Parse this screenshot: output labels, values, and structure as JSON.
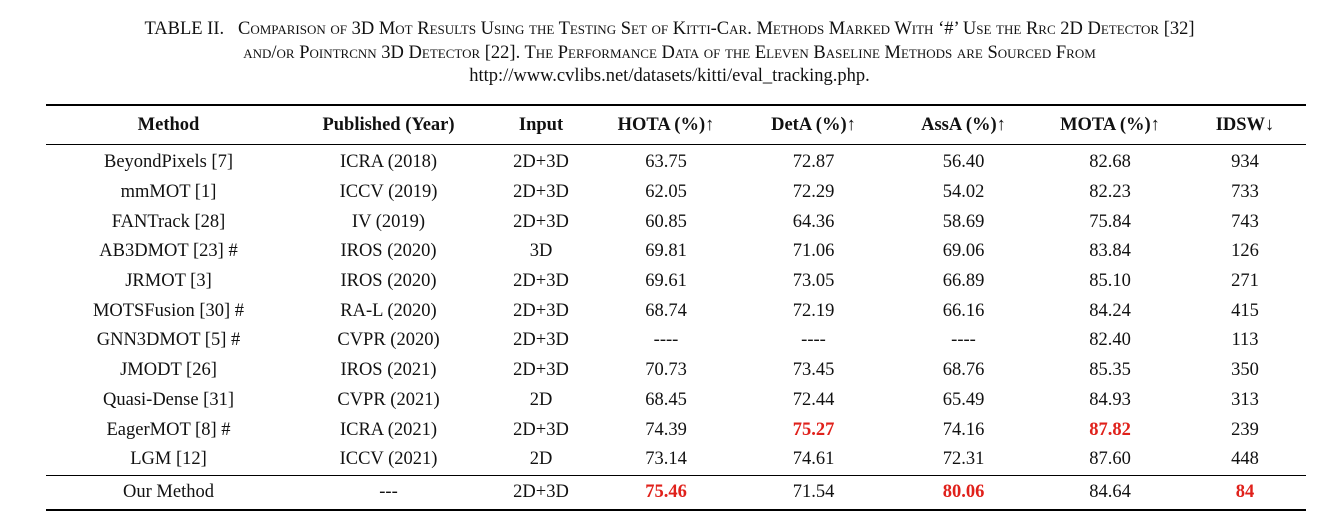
{
  "caption": {
    "label": "TABLE II.",
    "line1": "Comparison of 3D Mot Results Using the Testing Set of Kitti-Car. Methods Marked With ‘#’ Use the Rrc 2D Detector [32]",
    "line2": "and/or Pointrcnn 3D Detector [22]. The Performance Data of the Eleven Baseline Methods are Sourced From",
    "line3": "http://www.cvlibs.net/datasets/kitti/eval_tracking.php."
  },
  "table": {
    "headers": [
      "Method",
      "Published (Year)",
      "Input",
      "HOTA (%)↑",
      "DetA (%)↑",
      "AssA (%)↑",
      "MOTA (%)↑",
      "IDSW↓"
    ],
    "highlight_color": "#e0211b",
    "rows": [
      {
        "cells": [
          "BeyondPixels [7]",
          "ICRA (2018)",
          "2D+3D",
          "63.75",
          "72.87",
          "56.40",
          "82.68",
          "934"
        ],
        "best": []
      },
      {
        "cells": [
          "mmMOT [1]",
          "ICCV (2019)",
          "2D+3D",
          "62.05",
          "72.29",
          "54.02",
          "82.23",
          "733"
        ],
        "best": []
      },
      {
        "cells": [
          "FANTrack [28]",
          "IV (2019)",
          "2D+3D",
          "60.85",
          "64.36",
          "58.69",
          "75.84",
          "743"
        ],
        "best": []
      },
      {
        "cells": [
          "AB3DMOT [23] #",
          "IROS (2020)",
          "3D",
          "69.81",
          "71.06",
          "69.06",
          "83.84",
          "126"
        ],
        "best": []
      },
      {
        "cells": [
          "JRMOT [3]",
          "IROS (2020)",
          "2D+3D",
          "69.61",
          "73.05",
          "66.89",
          "85.10",
          "271"
        ],
        "best": []
      },
      {
        "cells": [
          "MOTSFusion [30] #",
          "RA-L (2020)",
          "2D+3D",
          "68.74",
          "72.19",
          "66.16",
          "84.24",
          "415"
        ],
        "best": []
      },
      {
        "cells": [
          "GNN3DMOT [5] #",
          "CVPR (2020)",
          "2D+3D",
          "----",
          "----",
          "----",
          "82.40",
          "113"
        ],
        "best": []
      },
      {
        "cells": [
          "JMODT [26]",
          "IROS (2021)",
          "2D+3D",
          "70.73",
          "73.45",
          "68.76",
          "85.35",
          "350"
        ],
        "best": []
      },
      {
        "cells": [
          "Quasi-Dense [31]",
          "CVPR (2021)",
          "2D",
          "68.45",
          "72.44",
          "65.49",
          "84.93",
          "313"
        ],
        "best": []
      },
      {
        "cells": [
          "EagerMOT [8] #",
          "ICRA (2021)",
          "2D+3D",
          "74.39",
          "75.27",
          "74.16",
          "87.82",
          "239"
        ],
        "best": [
          4,
          6
        ]
      },
      {
        "cells": [
          "LGM [12]",
          "ICCV (2021)",
          "2D",
          "73.14",
          "74.61",
          "72.31",
          "87.60",
          "448"
        ],
        "best": []
      },
      {
        "cells": [
          "Our Method",
          "---",
          "2D+3D",
          "75.46",
          "71.54",
          "80.06",
          "84.64",
          "84"
        ],
        "best": [
          3,
          5,
          7
        ]
      }
    ]
  }
}
